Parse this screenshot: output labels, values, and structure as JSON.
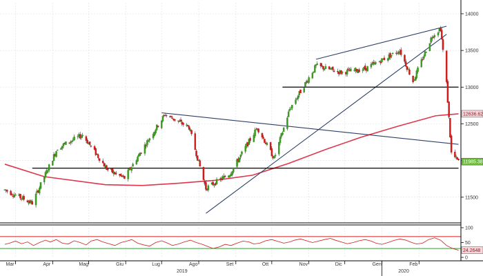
{
  "colors": {
    "up": "#3a9a1e",
    "down": "#d11a1a",
    "ma": "#e0354a",
    "trendline": "#2c3e66",
    "support": "#000000",
    "rsi": "#d11a1a",
    "rsi_upper": "#d11a1a",
    "rsi_lower": "#2ca02c",
    "grid": "#dfe3ea"
  },
  "chart_data": [
    {
      "type": "candlestick",
      "title": "",
      "xlabel": "",
      "ylabel": "",
      "x_ticks": [
        "Mar",
        "Apr",
        "Mag",
        "Giu",
        "Lug",
        "Ago",
        "Set",
        "Ott",
        "Nov",
        "Dic",
        "Gen",
        "Feb"
      ],
      "year_labels": [
        "2019",
        "2020"
      ],
      "y_ticks": [
        11500,
        12000,
        12500,
        13000,
        13500,
        14000
      ],
      "ylim": [
        11150,
        14150
      ],
      "grid": true,
      "last_price_label": "11985.3896",
      "ma_label": "12636.6246",
      "series": [
        {
          "date": "2019-02-20",
          "close": 11600
        },
        {
          "date": "2019-03-15",
          "close": 11420
        },
        {
          "date": "2019-04-05",
          "close": 12170
        },
        {
          "date": "2019-04-26",
          "close": 12350
        },
        {
          "date": "2019-05-17",
          "close": 11870
        },
        {
          "date": "2019-05-31",
          "close": 11760
        },
        {
          "date": "2019-06-21",
          "close": 12310
        },
        {
          "date": "2019-07-04",
          "close": 12630
        },
        {
          "date": "2019-07-24",
          "close": 12450
        },
        {
          "date": "2019-08-07",
          "close": 11620
        },
        {
          "date": "2019-08-27",
          "close": 11820
        },
        {
          "date": "2019-09-19",
          "close": 12450
        },
        {
          "date": "2019-10-03",
          "close": 12030
        },
        {
          "date": "2019-10-16",
          "close": 12700
        },
        {
          "date": "2019-11-07",
          "close": 13290
        },
        {
          "date": "2019-11-28",
          "close": 13200
        },
        {
          "date": "2019-12-18",
          "close": 13250
        },
        {
          "date": "2020-01-16",
          "close": 13500
        },
        {
          "date": "2020-01-27",
          "close": 13080
        },
        {
          "date": "2020-02-12",
          "close": 13700
        },
        {
          "date": "2020-02-19",
          "close": 13800
        },
        {
          "date": "2020-02-24",
          "close": 13050
        },
        {
          "date": "2020-02-28",
          "close": 12100
        },
        {
          "date": "2020-03-05",
          "close": 11985
        }
      ],
      "moving_average": [
        {
          "date": "2019-02-20",
          "value": 11950
        },
        {
          "date": "2019-03-25",
          "value": 11780
        },
        {
          "date": "2019-05-15",
          "value": 11670
        },
        {
          "date": "2019-06-15",
          "value": 11660
        },
        {
          "date": "2019-07-15",
          "value": 11690
        },
        {
          "date": "2019-08-15",
          "value": 11730
        },
        {
          "date": "2019-09-15",
          "value": 11800
        },
        {
          "date": "2019-10-15",
          "value": 11960
        },
        {
          "date": "2019-11-15",
          "value": 12150
        },
        {
          "date": "2019-12-15",
          "value": 12320
        },
        {
          "date": "2020-01-15",
          "value": 12470
        },
        {
          "date": "2020-02-15",
          "value": 12610
        },
        {
          "date": "2020-03-05",
          "value": 12636.6246
        }
      ],
      "trendlines": [
        {
          "from": {
            "date": "2019-07-01",
            "value": 12650
          },
          "to": {
            "date": "2020-03-05",
            "value": 12220
          }
        },
        {
          "from": {
            "date": "2019-08-07",
            "value": 11280
          },
          "to": {
            "date": "2020-02-24",
            "value": 13720
          }
        },
        {
          "from": {
            "date": "2019-11-07",
            "value": 13380
          },
          "to": {
            "date": "2020-02-24",
            "value": 13830
          }
        }
      ],
      "horizontal_lines": [
        {
          "value": 11895,
          "from": "2019-03-15",
          "to": "2020-03-05"
        },
        {
          "value": 13000,
          "from": "2019-10-10",
          "to": "2020-03-05"
        }
      ]
    },
    {
      "type": "line",
      "title": "",
      "y_ticks": [
        0,
        50,
        100
      ],
      "ylim": [
        0,
        100
      ],
      "thresholds": [
        70,
        30
      ],
      "last_value_label": "24.2648",
      "series": [
        {
          "name": "",
          "values": [
            44,
            48,
            55,
            46,
            52,
            40,
            50,
            58,
            52,
            60,
            48,
            45,
            56,
            50,
            42,
            55,
            60,
            52,
            46,
            40,
            50,
            55,
            60,
            48,
            42,
            38,
            50,
            56,
            48,
            40,
            45,
            52,
            58,
            50,
            44,
            36,
            30,
            35,
            44,
            40,
            48,
            55,
            52,
            45,
            48,
            56,
            60,
            54,
            48,
            52,
            58,
            62,
            56,
            50,
            55,
            60,
            64,
            58,
            52,
            46,
            50,
            56,
            60,
            55,
            48,
            44,
            50,
            57,
            62,
            58,
            50,
            45,
            48,
            60,
            66,
            58,
            40,
            30,
            24.2648
          ]
        }
      ]
    }
  ]
}
